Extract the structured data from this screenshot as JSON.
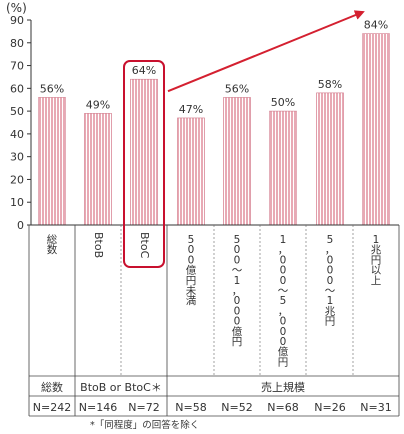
{
  "chart_data": {
    "type": "bar",
    "y_unit": "(%)",
    "ylim": [
      0,
      90
    ],
    "y_ticks": [
      "0",
      "10",
      "20",
      "30",
      "40",
      "50",
      "60",
      "70",
      "80",
      "90"
    ],
    "grid": false,
    "bar_color": "#e8a9b4",
    "bar_stripe_color": "#ffffff",
    "highlight_color": "#c8102e",
    "arrow_color": "#d42030",
    "categories": [
      "総数",
      "BtoB",
      "BtoC",
      "500億円未満",
      "500〜1,000億円",
      "1,000〜5,000億円",
      "5,000〜1兆円",
      "1兆円以上"
    ],
    "category_labels": [
      [
        "総",
        "数"
      ],
      [
        "BtoB"
      ],
      [
        "BtoC"
      ],
      [
        "5",
        "0",
        "0",
        "億",
        "円",
        "未",
        "満"
      ],
      [
        "5",
        "0",
        "0",
        "〜",
        "1",
        "，",
        "0",
        "0",
        "0",
        "億",
        "円"
      ],
      [
        "1",
        "，",
        "0",
        "0",
        "0",
        "〜",
        "5",
        "，",
        "0",
        "0",
        "0",
        "億",
        "円"
      ],
      [
        "5",
        "，",
        "0",
        "0",
        "0",
        "〜",
        "1",
        "兆",
        "円"
      ],
      [
        "1",
        "兆",
        "円",
        "以",
        "上"
      ]
    ],
    "values": [
      56,
      49,
      64,
      47,
      56,
      50,
      58,
      84
    ],
    "value_labels": [
      "56%",
      "49%",
      "64%",
      "47%",
      "56%",
      "50%",
      "58%",
      "84%"
    ],
    "highlighted_category": "BtoC",
    "groups": [
      {
        "label": "総数",
        "members": [
          "総数"
        ]
      },
      {
        "label": "BtoB or BtoC＊",
        "members": [
          "BtoB",
          "BtoC"
        ]
      },
      {
        "label": "売上規模",
        "members": [
          "500億円未満",
          "500〜1,000億円",
          "1,000〜5,000億円",
          "5,000〜1兆円",
          "1兆円以上"
        ]
      }
    ],
    "n_labels": [
      "N=242",
      "N=146",
      "N=72",
      "N=58",
      "N=52",
      "N=68",
      "N=26",
      "N=31"
    ],
    "footnote": "*「同程度」の回答を除く"
  }
}
